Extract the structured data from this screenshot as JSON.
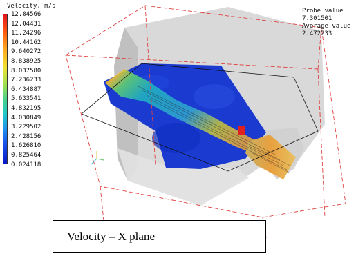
{
  "legend": {
    "title": "Velocity, m/s",
    "values": [
      "12.84566",
      "12.04431",
      "11.24296",
      "10.44162",
      "9.640272",
      "8.838925",
      "8.037580",
      "7.236233",
      "6.434887",
      "5.633541",
      "4.832195",
      "4.030849",
      "3.229502",
      "2.428156",
      "1.626810",
      "0.825464",
      "0.024118"
    ]
  },
  "probe": {
    "probe_label": "Probe value",
    "probe_value": "7.301501",
    "average_label": "Average value",
    "average_value": "2.472233"
  },
  "caption": "Velocity – X plane",
  "colors": {
    "max": "#e0141c",
    "mid": "#f0e030",
    "min": "#0818c8",
    "plane": "#1a3ad0",
    "probe_marker": "#e02020",
    "box_edges": "#e04040",
    "solid": "#cfcfcf"
  }
}
